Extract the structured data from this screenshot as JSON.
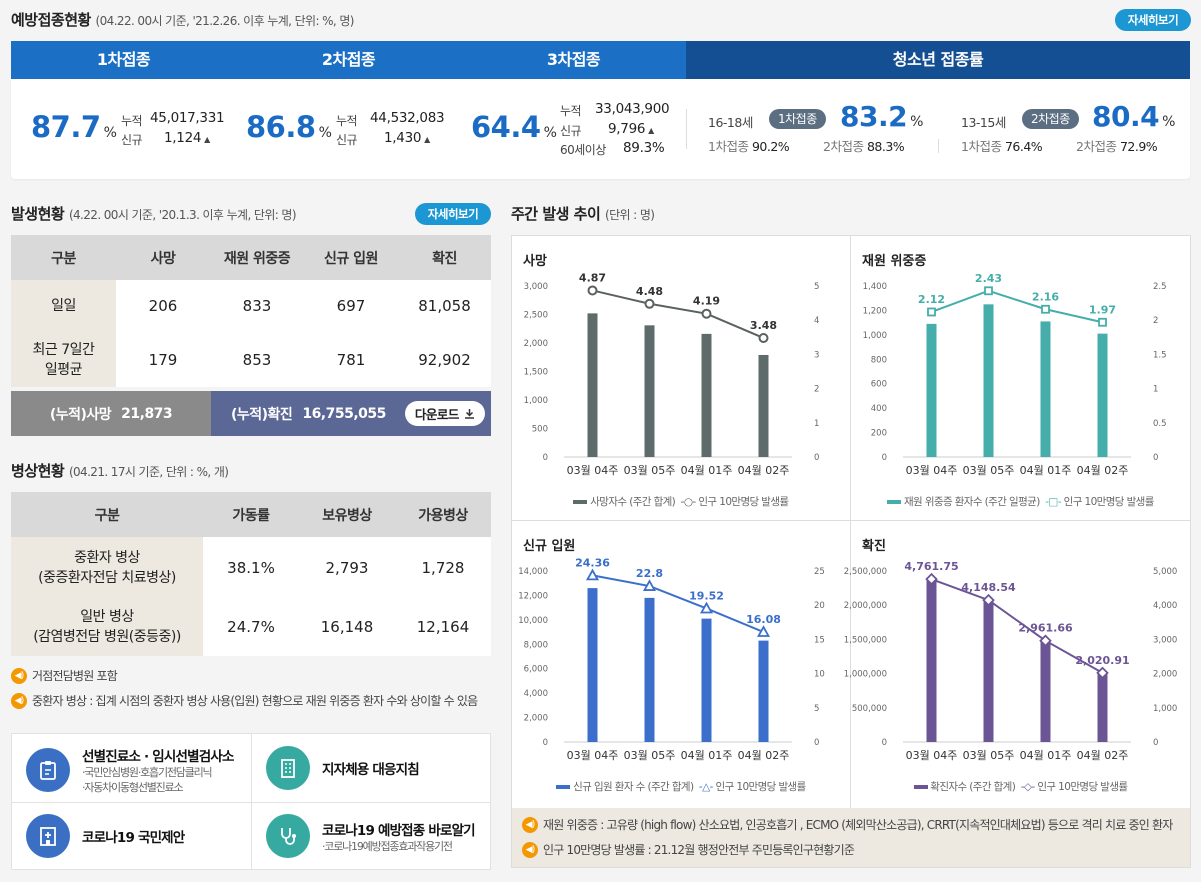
{
  "vaccination": {
    "title": "예방접종현황",
    "subtitle": "(04.22. 00시 기준, '21.2.26. 이후 누계, 단위: %, 명)",
    "detail_label": "자세히보기",
    "tabs": [
      "1차접종",
      "2차접종",
      "3차접종",
      "청소년 접종률"
    ],
    "dose1": {
      "pct": "87.7",
      "unit": "%",
      "cum_label": "누적",
      "cum": "45,017,331",
      "new_label": "신규",
      "new": "1,124"
    },
    "dose2": {
      "pct": "86.8",
      "unit": "%",
      "cum_label": "누적",
      "cum": "44,532,083",
      "new_label": "신규",
      "new": "1,430"
    },
    "dose3": {
      "pct": "64.4",
      "unit": "%",
      "cum_label": "누적",
      "cum": "33,043,900",
      "new_label": "신규",
      "new": "9,796",
      "age_label": "60세이상",
      "age_pct": "89.3%"
    },
    "teen": [
      {
        "age": "16-18세",
        "badge": "1차접종",
        "pct": "83.2",
        "unit": "%",
        "d1_label": "1차접종",
        "d1": "90.2%",
        "d2_label": "2차접종",
        "d2": "88.3%"
      },
      {
        "age": "13-15세",
        "badge": "2차접종",
        "pct": "80.4",
        "unit": "%",
        "d1_label": "1차접종",
        "d1": "76.4%",
        "d2_label": "2차접종",
        "d2": "72.9%"
      }
    ]
  },
  "occurrence": {
    "title": "발생현황",
    "subtitle": "(4.22. 00시 기준, '20.1.3. 이후 누계, 단위: 명)",
    "detail_label": "자세히보기",
    "headers": [
      "구분",
      "사망",
      "재원 위중증",
      "신규 입원",
      "확진"
    ],
    "rows": [
      {
        "label": "일일",
        "values": [
          "206",
          "833",
          "697",
          "81,058"
        ]
      },
      {
        "label": "최근 7일간\n일평균",
        "values": [
          "179",
          "853",
          "781",
          "92,902"
        ]
      }
    ],
    "cum_death_label": "(누적)사망",
    "cum_death": "21,873",
    "cum_conf_label": "(누적)확진",
    "cum_conf": "16,755,055",
    "download_label": "다운로드"
  },
  "beds": {
    "title": "병상현황",
    "subtitle": "(04.21. 17시 기준, 단위 : %, 개)",
    "headers": [
      "구분",
      "가동률",
      "보유병상",
      "가용병상"
    ],
    "rows": [
      {
        "label": "중환자 병상\n(중증환자전담 치료병상)",
        "values": [
          "38.1%",
          "2,793",
          "1,728"
        ]
      },
      {
        "label": "일반 병상\n(감염병전담 병원(중등중))",
        "values": [
          "24.7%",
          "16,148",
          "12,164"
        ]
      }
    ],
    "notes": [
      "거점전담병원 포함",
      "중환자 병상 : 집계 시점의 중환자 병상 사용(입원) 현황으로 재원 위중증 환자 수와 상이할 수 있음"
    ]
  },
  "quick_links": [
    {
      "title": "선별진료소 · 임시선별검사소",
      "sub1": "·국민안심병원·호흡기전담클리닉",
      "sub2": "·자동차이동형선별진료소",
      "icon": "clipboard-icon",
      "color": "#3a6fc4"
    },
    {
      "title": "지자체용 대응지침",
      "sub1": "",
      "sub2": "",
      "icon": "building-icon",
      "color": "#36a9a0"
    },
    {
      "title": "코로나19 국민제안",
      "sub1": "",
      "sub2": "",
      "icon": "hospital-icon",
      "color": "#3a6fc4"
    },
    {
      "title": "코로나19 예방접종 바로알기",
      "sub1": "·코로나19예방접종효과작용기전",
      "sub2": "",
      "icon": "stethoscope-icon",
      "color": "#36a9a0"
    }
  ],
  "weekly": {
    "title": "주간 발생 추이",
    "subtitle": "(단위 : 명)",
    "notes": [
      "재원 위중증 : 고유량 (high flow) 산소요법, 인공호흡기 , ECMO (체외막산소공급), CRRT(지속적인대체요법) 등으로 격리 치료 중인 환자",
      "인구 10만명당 발생률 : 21.12월 행정안전부 주민등록인구현황기준"
    ]
  },
  "colors": {
    "tab_blue": "#1b6fc4",
    "tab_dark": "#154f93",
    "pill_blue": "#1d97d4",
    "accent_orange": "#f39800"
  },
  "chart_data": [
    {
      "type": "bar",
      "title": "사망",
      "categories": [
        "03월 04주",
        "03월 05주",
        "04월 01주",
        "04월 02주"
      ],
      "series": [
        {
          "name": "사망자수 (주간 합계)",
          "values": [
            2520,
            2310,
            2160,
            1790
          ]
        },
        {
          "name": "인구 10만명당 발생률",
          "values": [
            4.87,
            4.48,
            4.19,
            3.48
          ],
          "labels": [
            "4.87",
            "4.48",
            "4.19",
            "3.48"
          ],
          "type": "line"
        }
      ],
      "ylim": [
        0,
        3000
      ],
      "y2lim": [
        0,
        5
      ],
      "yticks": [
        "0",
        "500",
        "1,000",
        "1,500",
        "2,000",
        "2,500",
        "3,000"
      ],
      "y2ticks": [
        "0",
        "1",
        "2",
        "3",
        "4",
        "5"
      ],
      "bar_color": "#5e6b6b",
      "line_color": "#5b6060",
      "marker": "circle"
    },
    {
      "type": "bar",
      "title": "재원 위중증",
      "categories": [
        "03월 04주",
        "03월 05주",
        "04월 01주",
        "04월 02주"
      ],
      "series": [
        {
          "name": "재원 위중증 환자수 (주간 일평균)",
          "values": [
            1090,
            1250,
            1110,
            1010
          ]
        },
        {
          "name": "인구 10만명당 발생률",
          "values": [
            2.12,
            2.43,
            2.16,
            1.97
          ],
          "labels": [
            "2.12",
            "2.43",
            "2.16",
            "1.97"
          ],
          "type": "line"
        }
      ],
      "ylim": [
        0,
        1400
      ],
      "y2lim": [
        0,
        2.5
      ],
      "yticks": [
        "0",
        "200",
        "400",
        "600",
        "800",
        "1,000",
        "1,200",
        "1,400"
      ],
      "y2ticks": [
        "0",
        "0.5",
        "1",
        "1.5",
        "2",
        "2.5"
      ],
      "bar_color": "#46aeaa",
      "line_color": "#46aeaa",
      "marker": "square"
    },
    {
      "type": "bar",
      "title": "신규 입원",
      "categories": [
        "03월 04주",
        "03월 05주",
        "04월 01주",
        "04월 02주"
      ],
      "series": [
        {
          "name": "신규 입원 환자 수 (주간 합계)",
          "values": [
            12600,
            11800,
            10100,
            8300
          ]
        },
        {
          "name": "인구 10만명당 발생률",
          "values": [
            24.36,
            22.8,
            19.52,
            16.08
          ],
          "labels": [
            "24.36",
            "22.8",
            "19.52",
            "16.08"
          ],
          "type": "line"
        }
      ],
      "ylim": [
        0,
        14000
      ],
      "y2lim": [
        0,
        25
      ],
      "yticks": [
        "0",
        "2,000",
        "4,000",
        "6,000",
        "8,000",
        "10,000",
        "12,000",
        "14,000"
      ],
      "y2ticks": [
        "0",
        "5",
        "10",
        "15",
        "20",
        "25"
      ],
      "bar_color": "#3b6fcb",
      "line_color": "#3b6fcb",
      "marker": "triangle"
    },
    {
      "type": "bar",
      "title": "확진",
      "categories": [
        "03월 04주",
        "03월 05주",
        "04월 01주",
        "04월 02주"
      ],
      "series": [
        {
          "name": "확진자수 (주간 합계)",
          "values": [
            2400000,
            2080000,
            1480000,
            1010000
          ]
        },
        {
          "name": "인구 10만명당 발생률",
          "values": [
            4761.75,
            4148.54,
            2961.66,
            2020.91
          ],
          "labels": [
            "4,761.75",
            "4,148.54",
            "2,961.66",
            "2,020.91"
          ],
          "type": "line"
        }
      ],
      "ylim": [
        0,
        2500000
      ],
      "y2lim": [
        0,
        5000
      ],
      "yticks": [
        "0",
        "500,000",
        "1,000,000",
        "1,500,000",
        "2,000,000",
        "2,500,000"
      ],
      "y2ticks": [
        "0",
        "1,000",
        "2,000",
        "3,000",
        "4,000",
        "5,000"
      ],
      "bar_color": "#6c5595",
      "line_color": "#6c5595",
      "marker": "diamond"
    }
  ]
}
